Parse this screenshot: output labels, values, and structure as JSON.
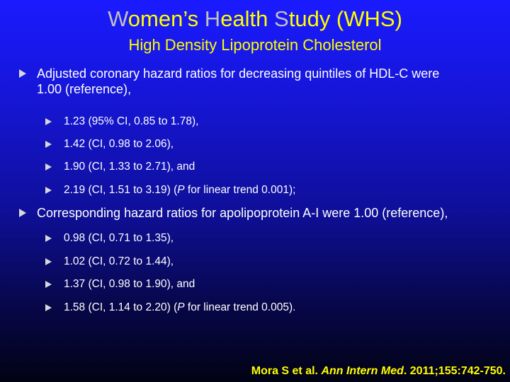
{
  "title": {
    "parts": [
      "W",
      "omen’s ",
      "H",
      "ealth ",
      "S",
      "tudy (WHS)"
    ]
  },
  "subtitle": "High Density Lipoprotein Cholesterol",
  "bullets": [
    {
      "line1": "Adjusted coronary hazard ratios for decreasing quintiles of HDL-C were",
      "line2": "1.00 (reference),",
      "items": [
        {
          "text": "1.23 (95% CI, 0.85 to 1.78),"
        },
        {
          "text": "1.42 (CI, 0.98 to 2.06),"
        },
        {
          "text": "1.90 (CI, 1.33 to 2.71), and"
        },
        {
          "pre": "2.19 (CI, 1.51 to 3.19) (",
          "p": "P",
          "post": " for linear trend  0.001);"
        }
      ]
    },
    {
      "line1": "Corresponding hazard ratios for apolipoprotein A-I were 1.00 (reference),",
      "items": [
        {
          "text": "0.98 (CI, 0.71 to 1.35),"
        },
        {
          "text": "1.02 (CI, 0.72 to 1.44),"
        },
        {
          "text": "1.37 (CI, 0.98 to 1.90), and"
        },
        {
          "pre": "1.58 (CI, 1.14 to 2.20) (",
          "p": "P",
          "post": " for linear trend  0.005)."
        }
      ]
    }
  ],
  "citation": {
    "authors": "Mora S et al. ",
    "journal": "Ann Intern Med",
    "rest": ". 2011;155:742-750."
  },
  "colors": {
    "title": "#ffff00",
    "title_caps": "#c0c0c0",
    "text": "#ffffff",
    "arrow": "#d8d8d8",
    "background_top": "#1a1aff",
    "background_bottom": "#020214"
  },
  "icons": {
    "bullet": "triangle-right-arrow-icon"
  }
}
